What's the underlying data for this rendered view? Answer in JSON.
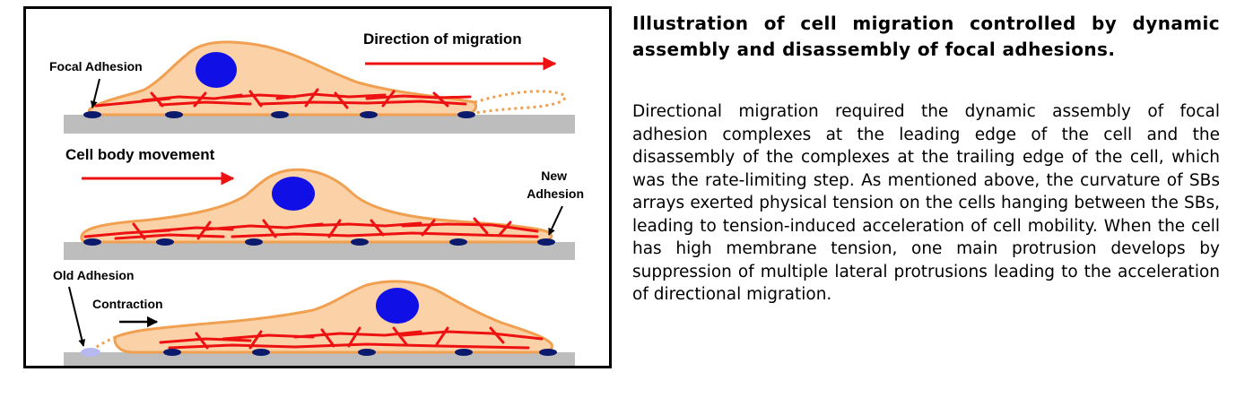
{
  "figure": {
    "labels": {
      "direction_of_migration": "Direction of migration",
      "focal_adhesion": "Focal Adhesion",
      "cell_body_movement": "Cell body movement",
      "new_adhesion_line1": "New",
      "new_adhesion_line2": "Adhesion",
      "old_adhesion": "Old Adhesion",
      "contraction": "Contraction"
    },
    "colors": {
      "cell_fill": "#fbd2a8",
      "cell_outline": "#f0a050",
      "nucleus": "#1010e6",
      "actin": "#ee1111",
      "adhesion": "#0c1a6e",
      "old_adhesion": "#b8b8f0",
      "substrate": "#bdbdbd",
      "arrow_red": "#ee1111",
      "arrow_black": "#000000"
    }
  },
  "panel": {
    "title": "Illustration of cell migration controlled by dynamic assembly and disassembly of focal adhesions.",
    "body": "Directional migration required the dynamic assembly of focal adhesion complexes at the leading edge of the cell and the disassembly of the complexes at the trailing edge of the cell, which was the rate-limiting step. As mentioned above, the curvature of SBs arrays exerted physical tension on the cells hanging between the SBs, leading to tension-induced acceleration of cell mobility. When the cell has high membrane tension, one main protrusion develops by suppression of multiple lateral protrusions leading to the acceleration of directional migration."
  }
}
